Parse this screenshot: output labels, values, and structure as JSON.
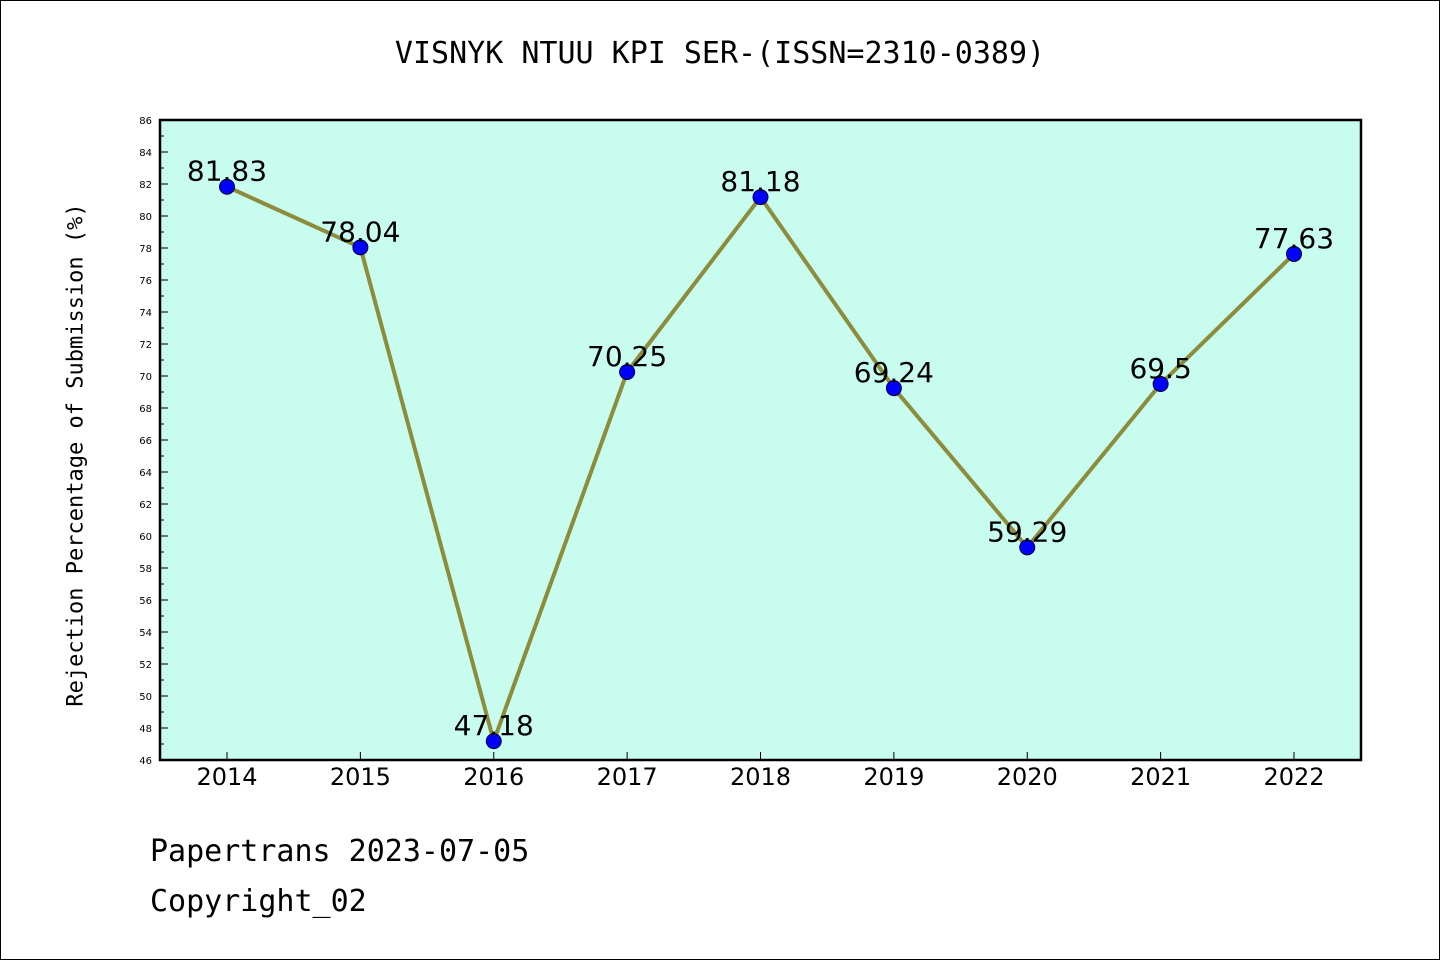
{
  "chart_data": {
    "type": "line",
    "title": "VISNYK NTUU KPI SER-(ISSN=2310-0389)",
    "xlabel": "",
    "ylabel": "Rejection Percentage of Submission (%)",
    "categories": [
      "2014",
      "2015",
      "2016",
      "2017",
      "2018",
      "2019",
      "2020",
      "2021",
      "2022"
    ],
    "series": [
      {
        "values": [
          81.83,
          78.04,
          47.18,
          70.25,
          81.18,
          69.24,
          59.29,
          69.5,
          77.63
        ]
      }
    ],
    "data_labels": [
      "81.83",
      "78.04",
      "47.18",
      "70.25",
      "81.18",
      "69.24",
      "59.29",
      "69.5",
      "77.63"
    ],
    "ylim": [
      46,
      86
    ],
    "ytick_step": 2,
    "grid": false,
    "colors": {
      "plot_background": "#c8fcee",
      "line": "#8c8c3c",
      "marker": "#0000ff"
    }
  },
  "footer": {
    "line1": "Papertrans 2023-07-05",
    "line2": "Copyright_02"
  }
}
